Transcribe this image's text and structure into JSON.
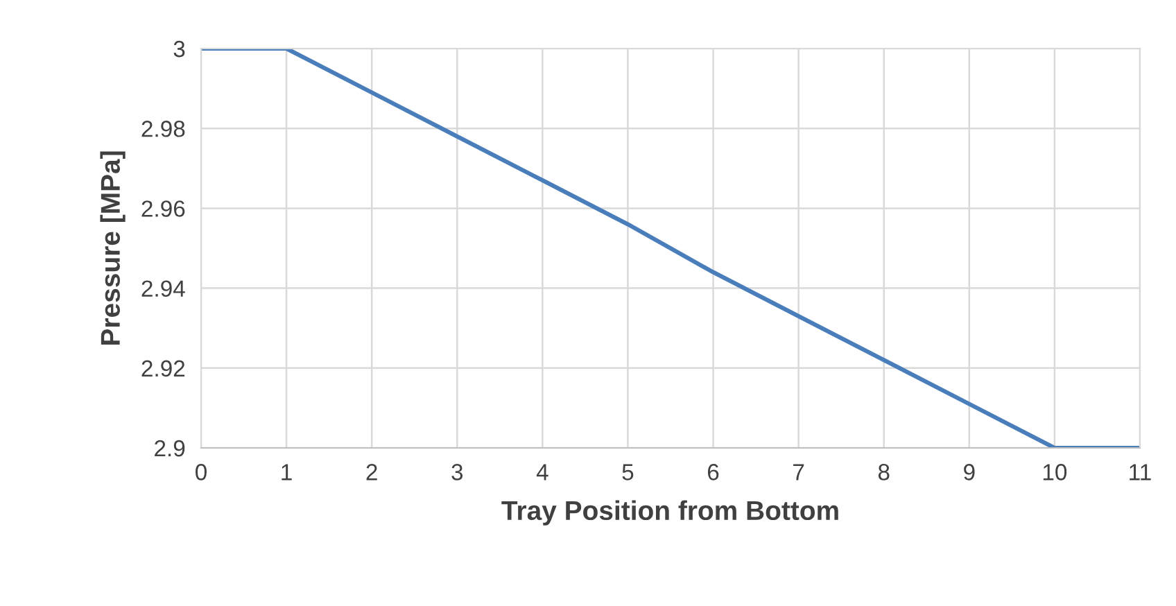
{
  "chart_data": {
    "type": "line",
    "xlabel": "Tray Position from Bottom",
    "ylabel": "Pressure [MPa]",
    "x": [
      0,
      1,
      2,
      3,
      4,
      5,
      6,
      7,
      8,
      9,
      10,
      11
    ],
    "series": [
      {
        "color": "#4a7ebb",
        "values": [
          3,
          3,
          2.989,
          2.978,
          2.967,
          2.956,
          2.944,
          2.933,
          2.922,
          2.911,
          2.9,
          2.9
        ]
      }
    ],
    "xlim": [
      0,
      11
    ],
    "xticks": [
      0,
      1,
      2,
      3,
      4,
      5,
      6,
      7,
      8,
      9,
      10,
      11
    ],
    "ylim": [
      2.9,
      3
    ],
    "yticks": [
      2.9,
      2.92,
      2.94,
      2.96,
      2.98,
      3
    ],
    "grid": true,
    "legend": false,
    "marker": "none",
    "line_style": "solid"
  }
}
